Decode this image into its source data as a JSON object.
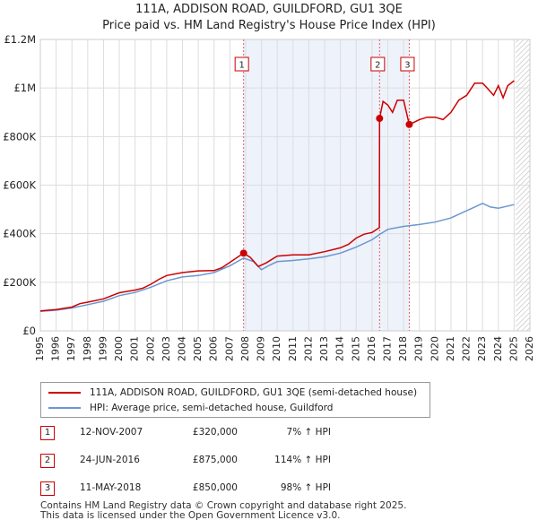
{
  "chart_data": {
    "type": "line",
    "title": "111A, ADDISON ROAD, GUILDFORD, GU1 3QE",
    "subtitle": "Price paid vs. HM Land Registry's House Price Index (HPI)",
    "x_range": [
      1995,
      2026
    ],
    "ylim": [
      0,
      1200000
    ],
    "x_ticks": [
      "1995",
      "1996",
      "1997",
      "1998",
      "1999",
      "2000",
      "2001",
      "2002",
      "2003",
      "2004",
      "2005",
      "2006",
      "2007",
      "2008",
      "2009",
      "2010",
      "2011",
      "2012",
      "2013",
      "2014",
      "2015",
      "2016",
      "2017",
      "2018",
      "2019",
      "2020",
      "2021",
      "2022",
      "2023",
      "2024",
      "2025",
      "2026"
    ],
    "y_ticks": [
      {
        "value": 0,
        "label": "£0"
      },
      {
        "value": 200000,
        "label": "£200K"
      },
      {
        "value": 400000,
        "label": "£400K"
      },
      {
        "value": 600000,
        "label": "£600K"
      },
      {
        "value": 800000,
        "label": "£800K"
      },
      {
        "value": 1000000,
        "label": "£1M"
      },
      {
        "value": 1200000,
        "label": "£1.2M"
      }
    ],
    "grid": true,
    "shaded_regions": [
      {
        "from": 2007.87,
        "to": 2018.36
      }
    ],
    "hatched_region": {
      "from": 2025.1,
      "to": 2026
    },
    "series": [
      {
        "name": "111A, ADDISON ROAD, GUILDFORD, GU1 3QE (semi-detached house)",
        "color": "#cc0000",
        "x": [
          1995.0,
          1996.0,
          1997.0,
          1997.5,
          1998.0,
          1999.0,
          2000.0,
          2001.0,
          2001.5,
          2002.0,
          2002.5,
          2003.0,
          2004.0,
          2005.0,
          2006.0,
          2006.5,
          2007.0,
          2007.87,
          2008.3,
          2008.8,
          2009.3,
          2010.0,
          2011.0,
          2012.0,
          2013.0,
          2014.0,
          2014.5,
          2015.0,
          2015.5,
          2016.0,
          2016.47,
          2016.48,
          2016.7,
          2017.0,
          2017.3,
          2017.6,
          2018.0,
          2018.36,
          2018.7,
          2019.0,
          2019.5,
          2020.0,
          2020.5,
          2021.0,
          2021.5,
          2022.0,
          2022.5,
          2023.0,
          2023.3,
          2023.7,
          2024.0,
          2024.3,
          2024.6,
          2025.0
        ],
        "values": [
          82000,
          88000,
          98000,
          112000,
          118000,
          132000,
          157000,
          168000,
          176000,
          192000,
          212000,
          228000,
          240000,
          247000,
          248000,
          260000,
          282000,
          320000,
          302000,
          265000,
          280000,
          308000,
          313000,
          313000,
          326000,
          342000,
          356000,
          382000,
          398000,
          405000,
          425000,
          875000,
          945000,
          930000,
          900000,
          950000,
          950000,
          850000,
          860000,
          870000,
          880000,
          880000,
          870000,
          900000,
          950000,
          970000,
          1020000,
          1020000,
          1000000,
          970000,
          1010000,
          960000,
          1010000,
          1030000
        ]
      },
      {
        "name": "HPI: Average price, semi-detached house, Guildford",
        "color": "#6b97cf",
        "x": [
          1995.0,
          1996.0,
          1997.0,
          1998.0,
          1999.0,
          2000.0,
          2001.0,
          2002.0,
          2003.0,
          2004.0,
          2005.0,
          2006.0,
          2007.0,
          2007.87,
          2008.5,
          2009.0,
          2009.5,
          2010.0,
          2011.0,
          2012.0,
          2013.0,
          2014.0,
          2015.0,
          2016.0,
          2016.5,
          2017.0,
          2018.0,
          2019.0,
          2020.0,
          2021.0,
          2022.0,
          2022.5,
          2023.0,
          2023.5,
          2024.0,
          2025.0
        ],
        "values": [
          80000,
          85000,
          94000,
          108000,
          122000,
          145000,
          158000,
          180000,
          206000,
          222000,
          228000,
          240000,
          268000,
          300000,
          285000,
          252000,
          270000,
          285000,
          290000,
          296000,
          305000,
          320000,
          345000,
          375000,
          398000,
          418000,
          430000,
          438000,
          448000,
          465000,
          495000,
          510000,
          525000,
          510000,
          505000,
          520000
        ]
      }
    ],
    "annotations": [
      {
        "label": "1",
        "x": 2007.87,
        "value": 320000
      },
      {
        "label": "2",
        "x": 2016.48,
        "value": 875000
      },
      {
        "label": "3",
        "x": 2018.36,
        "value": 850000
      }
    ]
  },
  "legend": [
    {
      "label": "111A, ADDISON ROAD, GUILDFORD, GU1 3QE (semi-detached house)",
      "color": "#cc0000"
    },
    {
      "label": "HPI: Average price, semi-detached house, Guildford",
      "color": "#6b97cf"
    }
  ],
  "transactions": [
    {
      "num": "1",
      "date": "12-NOV-2007",
      "price": "£320,000",
      "hpi": "7% ↑ HPI"
    },
    {
      "num": "2",
      "date": "24-JUN-2016",
      "price": "£875,000",
      "hpi": "114% ↑ HPI"
    },
    {
      "num": "3",
      "date": "11-MAY-2018",
      "price": "£850,000",
      "hpi": "98% ↑ HPI"
    }
  ],
  "footer": {
    "line1": "Contains HM Land Registry data © Crown copyright and database right 2025.",
    "line2": "This data is licensed under the Open Government Licence v3.0."
  }
}
